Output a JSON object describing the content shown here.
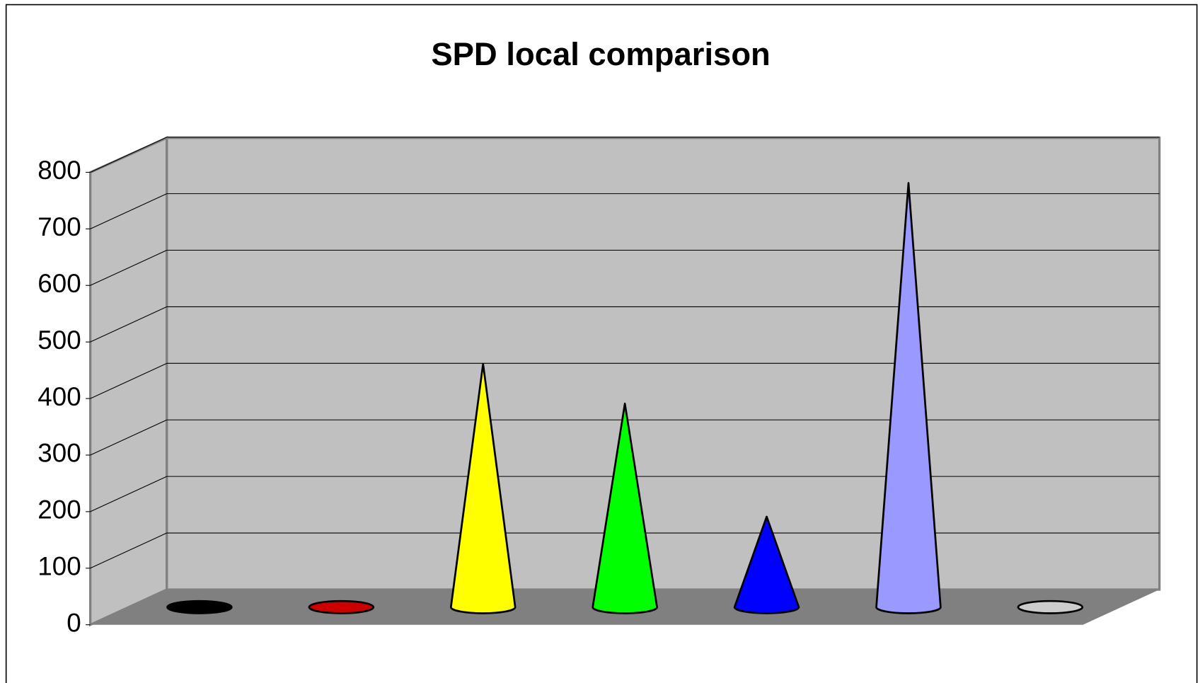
{
  "chart_data": {
    "type": "cone",
    "title": "SPD local comparison",
    "categories": [
      null,
      null,
      null,
      null,
      null,
      null,
      null
    ],
    "values": [
      0,
      0,
      430,
      360,
      160,
      750,
      0
    ],
    "colors": [
      "#000000",
      "#cc0000",
      "#ffff00",
      "#00ff00",
      "#0000ff",
      "#9999ff",
      "#cccccc"
    ],
    "ylim": [
      0,
      800
    ],
    "yticks": [
      0,
      100,
      200,
      300,
      400,
      500,
      600,
      700,
      800
    ],
    "grid": true
  }
}
